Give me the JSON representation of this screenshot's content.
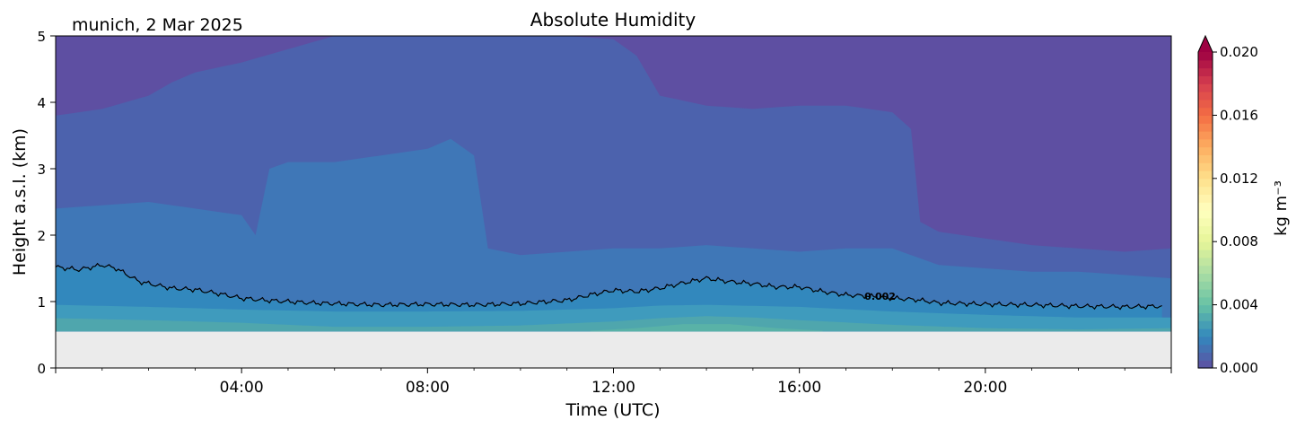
{
  "chart_data": {
    "type": "heatmap",
    "title": "Absolute Humidity",
    "location_date": "munich, 2 Mar 2025",
    "xlabel": "Time (UTC)",
    "ylabel": "Height a.s.l. (km)",
    "x_ticks": [
      "04:00",
      "08:00",
      "12:00",
      "16:00",
      "20:00"
    ],
    "x_tick_hours": [
      4,
      8,
      12,
      16,
      20
    ],
    "xlim_hours": [
      0,
      24
    ],
    "ylim_km": [
      0,
      5
    ],
    "y_ticks": [
      "0",
      "1",
      "2",
      "3",
      "4",
      "5"
    ],
    "y_tick_values": [
      0,
      1,
      2,
      3,
      4,
      5
    ],
    "data_bottom_km": 0.55,
    "colorbar": {
      "label": "kg m⁻³",
      "range": [
        0.0,
        0.02
      ],
      "extend": "max",
      "colormap": "Spectral_r",
      "ticks": [
        "0.000",
        "0.004",
        "0.008",
        "0.012",
        "0.016",
        "0.020"
      ],
      "tick_values": [
        0.0,
        0.004,
        0.008,
        0.012,
        0.016,
        0.02
      ],
      "colors": [
        "#5e4fa2",
        "#3288bd",
        "#66c2a5",
        "#abdda4",
        "#e6f598",
        "#ffffbf",
        "#fee08b",
        "#fdae61",
        "#f46d43",
        "#d53e4f",
        "#9e0142"
      ]
    },
    "contour": {
      "level": 0.002,
      "label": "0.002",
      "label_hour": 17.4,
      "hours": [
        0,
        0.5,
        1,
        1.3,
        1.8,
        2.5,
        3,
        3.5,
        4,
        4.5,
        5,
        5.5,
        6,
        7,
        8,
        9,
        10,
        11,
        11.5,
        12,
        12.5,
        13,
        13.5,
        14,
        14.5,
        15,
        15.5,
        16,
        16.5,
        17,
        17.5,
        18,
        18.5,
        19,
        20,
        21,
        22,
        23,
        23.8
      ],
      "heights_km": [
        1.52,
        1.48,
        1.55,
        1.5,
        1.3,
        1.2,
        1.18,
        1.12,
        1.05,
        1.02,
        1.0,
        0.98,
        0.97,
        0.95,
        0.96,
        0.95,
        0.97,
        1.02,
        1.1,
        1.17,
        1.15,
        1.2,
        1.28,
        1.35,
        1.3,
        1.27,
        1.22,
        1.22,
        1.15,
        1.1,
        1.08,
        1.05,
        1.03,
        0.98,
        0.96,
        0.95,
        0.93,
        0.92,
        0.93
      ]
    },
    "bands": [
      {
        "level": 0.0,
        "color": "#5e4fa2",
        "hours": [
          0,
          24
        ],
        "top_km": [
          5,
          5
        ]
      },
      {
        "level": 0.001,
        "color": "#4c62ad",
        "hours": [
          0,
          0.5,
          1,
          1.5,
          2,
          2.5,
          3,
          4,
          5,
          6,
          7,
          8,
          9,
          10,
          11,
          12,
          12.5,
          13,
          14,
          15,
          16,
          17,
          18,
          18.4,
          18.6,
          19,
          20,
          21,
          22,
          23,
          24
        ],
        "top_km": [
          3.8,
          3.85,
          3.9,
          4.0,
          4.1,
          4.3,
          4.45,
          4.6,
          4.8,
          5.0,
          5.0,
          5.0,
          5.0,
          5.0,
          5.0,
          4.95,
          4.7,
          4.1,
          3.95,
          3.9,
          3.95,
          3.95,
          3.85,
          3.6,
          2.2,
          2.05,
          1.95,
          1.85,
          1.8,
          1.75,
          1.8
        ]
      },
      {
        "level": 0.0015,
        "color": "#3f77b7",
        "hours": [
          0,
          1,
          2,
          3,
          4,
          4.3,
          4.6,
          5,
          6,
          7,
          8,
          8.5,
          9,
          9.3,
          10,
          11,
          12,
          13,
          14,
          15,
          16,
          17,
          18,
          19,
          20,
          21,
          22,
          23,
          24
        ],
        "top_km": [
          2.4,
          2.45,
          2.5,
          2.4,
          2.3,
          2.0,
          3.0,
          3.1,
          3.1,
          3.2,
          3.3,
          3.45,
          3.2,
          1.8,
          1.7,
          1.75,
          1.8,
          1.8,
          1.85,
          1.8,
          1.75,
          1.8,
          1.8,
          1.55,
          1.5,
          1.45,
          1.45,
          1.4,
          1.35
        ]
      },
      {
        "level": 0.002,
        "color": "#3288bd",
        "hours": [],
        "top_km": []
      },
      {
        "level": 0.0025,
        "color": "#3f9bbd",
        "hours": [
          0,
          2,
          4,
          6,
          8,
          10,
          12,
          13,
          14,
          16,
          18,
          20,
          22,
          24
        ],
        "top_km": [
          0.95,
          0.92,
          0.88,
          0.85,
          0.85,
          0.86,
          0.9,
          0.94,
          0.95,
          0.92,
          0.85,
          0.8,
          0.76,
          0.76
        ]
      },
      {
        "level": 0.003,
        "color": "#4fa6ad",
        "hours": [
          0,
          2,
          4,
          6,
          8,
          10,
          12,
          13,
          14,
          15,
          16,
          18,
          20,
          22,
          24
        ],
        "top_km": [
          0.75,
          0.72,
          0.68,
          0.62,
          0.62,
          0.64,
          0.7,
          0.75,
          0.78,
          0.76,
          0.72,
          0.65,
          0.6,
          0.58,
          0.6
        ]
      },
      {
        "level": 0.0035,
        "color": "#59b2a7",
        "hours": [
          11.5,
          12.5,
          13.5,
          14.5,
          15.5,
          16.5
        ],
        "top_km": [
          0.56,
          0.6,
          0.66,
          0.66,
          0.6,
          0.56
        ]
      }
    ]
  }
}
